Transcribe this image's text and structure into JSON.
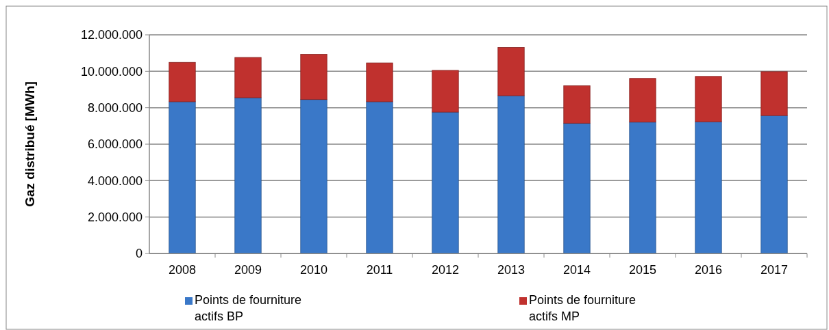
{
  "chart_data": {
    "type": "bar",
    "stacked": true,
    "ylabel": "Gaz distribué [MWh]",
    "categories": [
      "2008",
      "2009",
      "2010",
      "2011",
      "2012",
      "2013",
      "2014",
      "2015",
      "2016",
      "2017"
    ],
    "series": [
      {
        "name": "Points de fourniture actifs BP",
        "color": "#3a78c8",
        "values": [
          8330000,
          8550000,
          8450000,
          8330000,
          7760000,
          8660000,
          7150000,
          7210000,
          7230000,
          7570000
        ]
      },
      {
        "name": "Points de fourniture actifs MP",
        "color": "#c0312e",
        "values": [
          2160000,
          2210000,
          2480000,
          2130000,
          2290000,
          2650000,
          2060000,
          2400000,
          2490000,
          2410000
        ]
      }
    ],
    "ylim": [
      0,
      12000000
    ],
    "yticks": [
      0,
      {
        "value": 2000000,
        "label": "2.000.000"
      },
      {
        "value": 4000000,
        "label": "4.000.000"
      },
      {
        "value": 6000000,
        "label": "6.000.000"
      },
      {
        "value": 8000000,
        "label": "8.000.000"
      },
      {
        "value": 10000000,
        "label": "10.000.000"
      },
      {
        "value": 12000000,
        "label": "12.000.000"
      }
    ],
    "grid": "y",
    "legend": "bottom"
  }
}
